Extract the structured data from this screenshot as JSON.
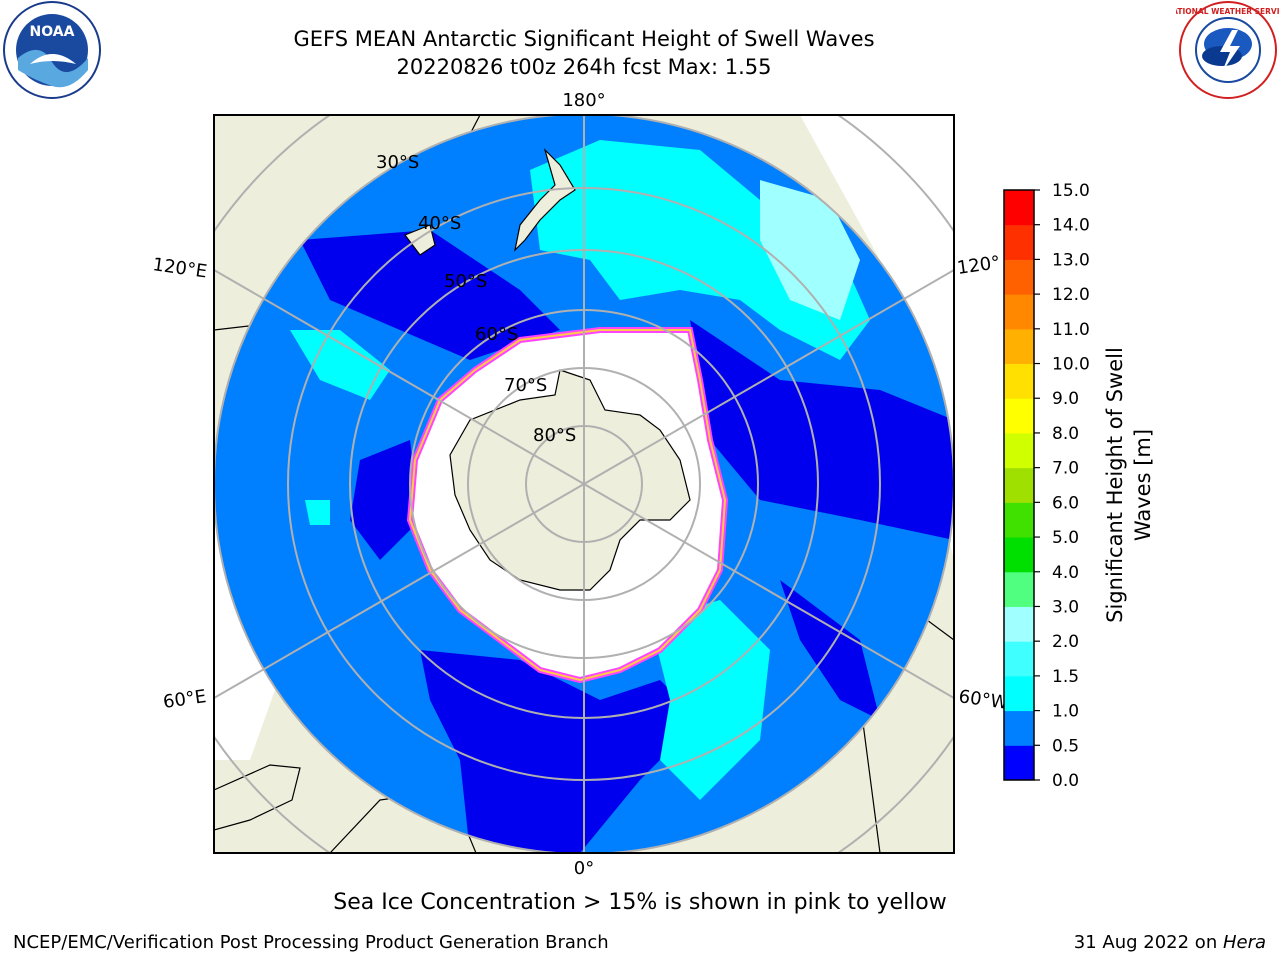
{
  "title_line1": "GEFS MEAN Antarctic Significant Height of Swell Waves",
  "title_line2": "20220826 t00z 264h fcst   Max: 1.55",
  "lon_labels": {
    "top": "180°",
    "bottom": "0°",
    "upper_left": "120°E",
    "upper_right": "120°",
    "lower_left": "60°E",
    "lower_right": "60°W"
  },
  "lat_labels": [
    "30°S",
    "40°S",
    "50°S",
    "60°S",
    "70°S",
    "80°S"
  ],
  "colorbar": {
    "label_line1": "Significant Height of Swell",
    "label_line2": "Waves [m]",
    "ticks": [
      "0.0",
      "0.5",
      "1.0",
      "1.5",
      "2.0",
      "3.0",
      "4.0",
      "5.0",
      "6.0",
      "7.0",
      "8.0",
      "9.0",
      "10.0",
      "11.0",
      "12.0",
      "13.0",
      "14.0",
      "15.0"
    ],
    "colors": [
      "#0000ff",
      "#0080ff",
      "#00ffff",
      "#40ffff",
      "#a0ffff",
      "#50ff80",
      "#00e000",
      "#40e000",
      "#a0e000",
      "#d0ff00",
      "#ffff00",
      "#ffe000",
      "#ffb000",
      "#ff8800",
      "#ff6000",
      "#ff3000",
      "#ff0000"
    ]
  },
  "legend_note": "Sea Ice Concentration > 15% is shown in pink to yellow",
  "credit": "NCEP/EMC/Verification Post Processing Product Generation Branch",
  "date_prefix": "31 Aug 2022 on ",
  "date_host": "Hera",
  "logos": {
    "noaa_text": "NOAA",
    "nws_text": "NATIONAL WEATHER SERVICE"
  },
  "map_colors": {
    "ocean": "#0080ff",
    "deep": "#0000ee",
    "swell": "#00ffff",
    "land": "#eeeedc",
    "ice": "#ffffff",
    "ice_edge": "#ff44ff",
    "grid": "#b0b0b0"
  }
}
